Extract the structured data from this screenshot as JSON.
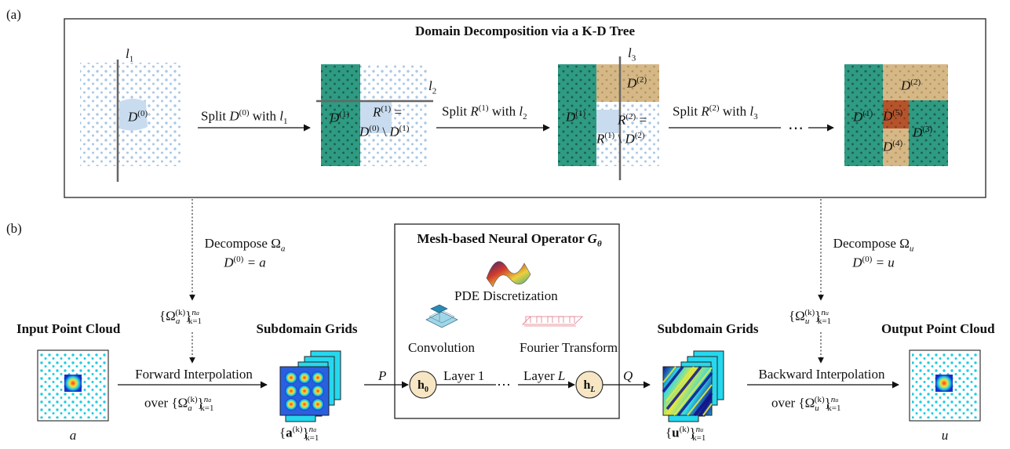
{
  "panel_a": {
    "label": "(a)",
    "title": "Domain Decomposition via a K-D Tree",
    "line_labels": [
      "l",
      "1",
      "l",
      "2",
      "l",
      "3"
    ],
    "step1": {
      "split": "Split ",
      "D": "D",
      "sup": "(0)",
      "with": " with ",
      "l": "l",
      "sub": "1"
    },
    "step2": {
      "split": "Split ",
      "R": "R",
      "sup": "(1)",
      "with": " with ",
      "l": "l",
      "sub": "2"
    },
    "step3": {
      "split": "Split ",
      "R": "R",
      "sup": "(2)",
      "with": " with ",
      "l": "l",
      "sub": "3"
    },
    "ellipsis": "⋯",
    "d0": {
      "D": "D",
      "sup": "(0)"
    },
    "r1_def": {
      "R": "R",
      "sup": "(1)",
      "eq": " =",
      "D0": "D",
      "D0sup": "(0)",
      "minus": " \\ ",
      "D1": "D",
      "D1sup": "(1)"
    },
    "r2_def": {
      "R": "R",
      "sup": "(2)",
      "eq": " =",
      "R1": "R",
      "R1sup": "(1)",
      "minus": " \\ ",
      "D2": "D",
      "D2sup": "(2)"
    },
    "regions": [
      {
        "D": "D",
        "sup": "(1)"
      },
      {
        "D": "D",
        "sup": "(1)"
      },
      {
        "D": "D",
        "sup": "(2)"
      },
      {
        "D": "D",
        "sup": "(1)"
      },
      {
        "D": "D",
        "sup": "(2)"
      },
      {
        "D": "D",
        "sup": "(5)"
      },
      {
        "D": "D",
        "sup": "(4)"
      },
      {
        "D": "D",
        "sup": "(3)"
      }
    ]
  },
  "panel_b": {
    "label": "(b)",
    "operator_title": "Mesh-based Neural Operator ",
    "operator_symbol": "G",
    "operator_sub": "θ",
    "pde_label": "PDE Discretization",
    "conv_label": "Convolution",
    "fourier_label": "Fourier Transform",
    "input_title": "Input Point Cloud",
    "input_var": "a",
    "output_title": "Output Point Cloud",
    "output_var": "u",
    "subdomain_title_left": "Subdomain Grids",
    "subdomain_title_right": "Subdomain Grids",
    "decompose_left": {
      "text": "Decompose ",
      "Omega": "Ω",
      "sub": "a",
      "eq_D": "D",
      "eq_sup": "(0)",
      "eq_rhs": " = a"
    },
    "decompose_right": {
      "text": "Decompose ",
      "Omega": "Ω",
      "sub": "u",
      "eq_D": "D",
      "eq_sup": "(0)",
      "eq_rhs": " = u"
    },
    "set_left": {
      "Omega": "Ω",
      "sub": "a",
      "sup": "(k)",
      "upper": "n",
      "upper_sub": "a",
      "lower": "k=1"
    },
    "set_right": {
      "Omega": "Ω",
      "sub": "u",
      "sup": "(k)",
      "upper": "n",
      "upper_sub": "u",
      "lower": "k=1"
    },
    "forward": {
      "label": "Forward Interpolation",
      "over": "over "
    },
    "backward": {
      "label": "Backward Interpolation",
      "over": "over "
    },
    "grid_set_left": {
      "sym": "a",
      "sup": "(k)",
      "upper": "n",
      "upper_sub": "a",
      "lower": "k=1"
    },
    "grid_set_right": {
      "sym": "u",
      "sup": "(k)",
      "upper": "n",
      "upper_sub": "u",
      "lower": "k=1"
    },
    "P": "P",
    "Q": "Q",
    "h0": {
      "h": "h",
      "sub": "0"
    },
    "hL": {
      "h": "h",
      "sub": "L"
    },
    "layer1": "Layer 1",
    "layerL": "Layer ",
    "layerL_sym": "L",
    "dots": "⋯"
  },
  "colors": {
    "teal": "#2e9b82",
    "tan": "#d6b887",
    "rust": "#b5542c",
    "light_blue": "#c9dcef",
    "dot_blue": "#a9c7e6",
    "node_fill": "#f7e6c4",
    "cyan": "#22cde0"
  }
}
